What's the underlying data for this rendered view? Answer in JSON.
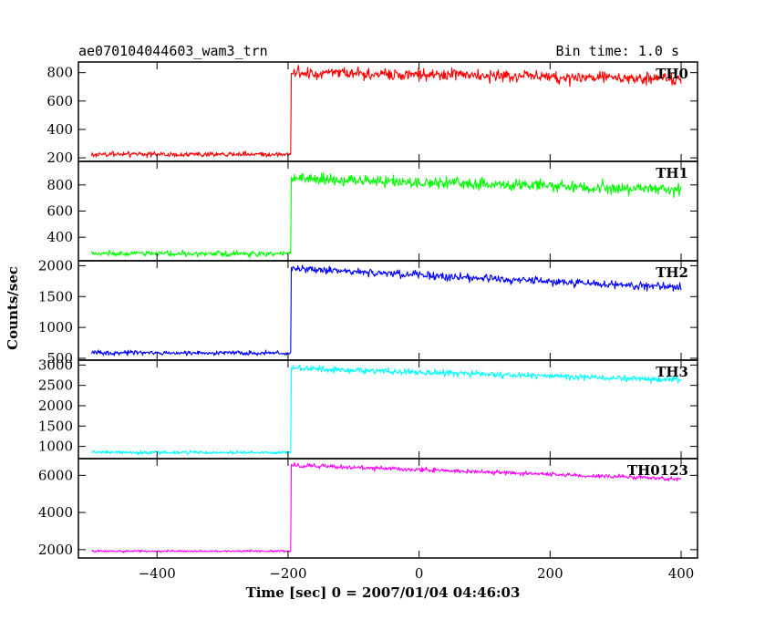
{
  "chart_data": {
    "type": "line",
    "title_left": "ae070104044603_wam3_trn",
    "title_right": "Bin time: 1.0 s",
    "xlabel": "Time [sec] 0 = 2007/01/04 04:46:03",
    "ylabel": "Counts/sec",
    "xlim": [
      -520,
      425
    ],
    "x_ticks": [
      -400,
      -200,
      0,
      200,
      400
    ],
    "x_tick_labels": [
      "−400",
      "−200",
      "0",
      "200",
      "400"
    ],
    "grid": false,
    "panels": [
      {
        "name": "TH0",
        "color": "#ff0000",
        "ylim": [
          175,
          875
        ],
        "y_ticks": [
          200,
          400,
          600,
          800
        ],
        "x_start": -500,
        "x_jump": -195,
        "x_end": 400,
        "pre_level": 225,
        "pre_noise": 18,
        "post_start": 800,
        "post_end": 755,
        "post_noise": 40
      },
      {
        "name": "TH1",
        "color": "#00ff00",
        "ylim": [
          220,
          980
        ],
        "y_ticks": [
          400,
          600,
          800
        ],
        "x_start": -500,
        "x_jump": -195,
        "x_end": 400,
        "pre_level": 275,
        "pre_noise": 20,
        "post_start": 850,
        "post_end": 760,
        "post_noise": 42
      },
      {
        "name": "TH2",
        "color": "#0000ff",
        "ylim": [
          470,
          2080
        ],
        "y_ticks": [
          500,
          1000,
          1500,
          2000
        ],
        "x_start": -500,
        "x_jump": -195,
        "x_end": 400,
        "pre_level": 585,
        "pre_noise": 32,
        "post_start": 1950,
        "post_end": 1640,
        "post_noise": 60
      },
      {
        "name": "TH3",
        "color": "#00ffff",
        "ylim": [
          700,
          3120
        ],
        "y_ticks": [
          1000,
          1500,
          2000,
          2500,
          3000
        ],
        "x_start": -500,
        "x_jump": -195,
        "x_end": 400,
        "pre_level": 850,
        "pre_noise": 40,
        "post_start": 2920,
        "post_end": 2630,
        "post_noise": 75
      },
      {
        "name": "TH0123",
        "color": "#ff00ff",
        "ylim": [
          1550,
          6900
        ],
        "y_ticks": [
          2000,
          4000,
          6000
        ],
        "x_start": -500,
        "x_jump": -195,
        "x_end": 400,
        "pre_level": 1920,
        "pre_noise": 55,
        "post_start": 6550,
        "post_end": 5800,
        "post_noise": 110
      }
    ]
  }
}
